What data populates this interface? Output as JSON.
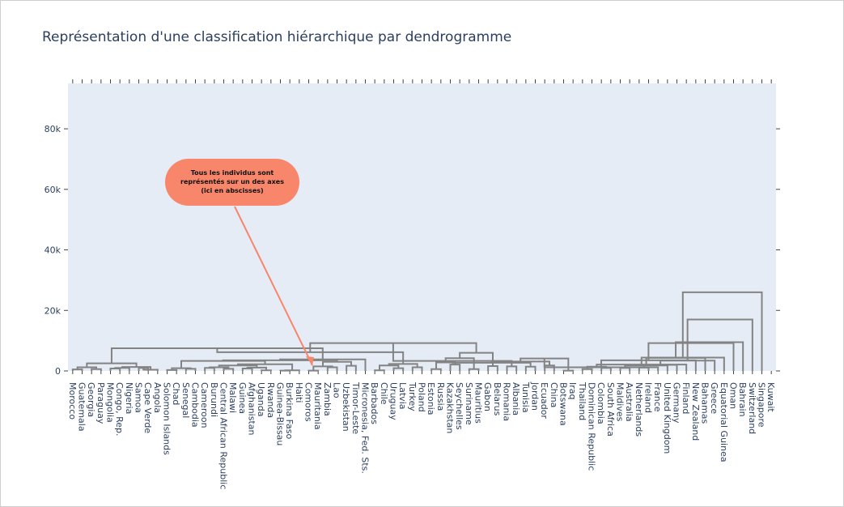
{
  "title": "Représentation d'une classification hiérarchique par dendrogramme",
  "annotation": {
    "lines": [
      "Tous les individus sont",
      "représentés sur un des axes",
      "(ici en abscisses)"
    ],
    "bubble_color": "#f8866a",
    "arrow_color": "#f8866a"
  },
  "colors": {
    "plot_bg": "#e5ecf6",
    "link": "#838383",
    "axis_text": "#2a3f5f"
  },
  "chart_data": {
    "type": "dendrogram",
    "title": "Représentation d'une classification hiérarchique par dendrogramme",
    "ylim": [
      0,
      95000
    ],
    "yticks": [
      {
        "v": 0,
        "label": "0"
      },
      {
        "v": 20000,
        "label": "20k"
      },
      {
        "v": 40000,
        "label": "40k"
      },
      {
        "v": 60000,
        "label": "60k"
      },
      {
        "v": 80000,
        "label": "80k"
      }
    ],
    "leaves": [
      "Morocco",
      "Guatemala",
      "Georgia",
      "Paraguay",
      "Mongolia",
      "Congo, Rep.",
      "Nigeria",
      "Samoa",
      "Cape Verde",
      "Angola",
      "Solomon Islands",
      "Chad",
      "Senegal",
      "Cambodia",
      "Cameroon",
      "Burundi",
      "Central African Republic",
      "Malawi",
      "Guinea",
      "Afghanistan",
      "Uganda",
      "Rwanda",
      "Guinea-Bissau",
      "Burkina Faso",
      "Haiti",
      "Comoros",
      "Mauritania",
      "Zambia",
      "Lao",
      "Uzbekistan",
      "Timor-Leste",
      "Micronesia, Fed. Sts.",
      "Barbados",
      "Chile",
      "Uruguay",
      "Latvia",
      "Turkey",
      "Poland",
      "Estonia",
      "Russia",
      "Kazakhstan",
      "Seychelles",
      "Suriname",
      "Mauritius",
      "Gabon",
      "Belarus",
      "Romania",
      "Albania",
      "Tunisia",
      "Jordan",
      "Ecuador",
      "China",
      "Botswana",
      "Iraq",
      "Thailand",
      "Dominican Republic",
      "Colombia",
      "South Africa",
      "Maldives",
      "Australia",
      "Netherlands",
      "Ireland",
      "France",
      "United Kingdom",
      "Germany",
      "Finland",
      "New Zealand",
      "Bahamas",
      "Greece",
      "Equatorial Guinea",
      "Oman",
      "Bahrain",
      "Switzerland",
      "Singapore",
      "Kuwait"
    ],
    "links": [
      [
        0,
        1,
        500
      ],
      [
        2,
        3,
        600
      ],
      [
        "L1",
        "L0",
        1200
      ],
      [
        4,
        5,
        800
      ],
      [
        "L3",
        6,
        1000
      ],
      [
        7,
        8,
        1000
      ],
      [
        "L5",
        9,
        400
      ],
      [
        "L4",
        "L6",
        1300
      ],
      [
        "L2",
        "L7",
        2500
      ],
      [
        10,
        11,
        300
      ],
      [
        12,
        13,
        700
      ],
      [
        "L9",
        "L10",
        900
      ],
      [
        14,
        15,
        1000
      ],
      [
        16,
        17,
        700
      ],
      [
        "L12",
        "L13",
        1200
      ],
      [
        18,
        19,
        800
      ],
      [
        20,
        21,
        200
      ],
      [
        "L15",
        "L16",
        1100
      ],
      [
        "L14",
        "L17",
        1800
      ],
      [
        22,
        23,
        100
      ],
      [
        "L19",
        24,
        200
      ],
      [
        "L18",
        "L20",
        2200
      ],
      [
        "L11",
        "L21",
        3300
      ],
      [
        25,
        26,
        100
      ],
      [
        27,
        28,
        1200
      ],
      [
        "L23",
        "L24",
        1500
      ],
      [
        29,
        30,
        1700
      ],
      [
        "L25",
        "L26",
        3000
      ],
      [
        "L22",
        "L27",
        3500
      ],
      [
        "L28",
        31,
        3800
      ],
      [
        "L8",
        "L29",
        7500
      ],
      [
        32,
        33,
        200
      ],
      [
        34,
        35,
        900
      ],
      [
        "L31",
        "L32",
        1800
      ],
      [
        36,
        37,
        1200
      ],
      [
        "L33",
        "L34",
        2300
      ],
      [
        "L30",
        "L35",
        6200
      ],
      [
        38,
        39,
        600
      ],
      [
        40,
        41,
        2100
      ],
      [
        "L37",
        "L38",
        2800
      ],
      [
        42,
        43,
        600
      ],
      [
        "L39",
        "L40",
        4200
      ],
      [
        44,
        45,
        1600
      ],
      [
        "L41",
        "L42",
        6000
      ],
      [
        "L36",
        "L43",
        9200
      ],
      [
        46,
        47,
        1500
      ],
      [
        "L44",
        "L45",
        3300
      ],
      [
        48,
        49,
        1400
      ],
      [
        50,
        51,
        1800
      ],
      [
        "L46",
        "L47",
        2700
      ],
      [
        52,
        53,
        100
      ],
      [
        "L48",
        "L49",
        3100
      ],
      [
        54,
        55,
        600
      ],
      [
        56,
        57,
        1000
      ],
      [
        "L50",
        "L51",
        4100
      ],
      [
        58,
        59,
        1000
      ],
      [
        60,
        61,
        1100
      ],
      [
        "L52",
        "L53",
        1400
      ],
      [
        "L54",
        62,
        1200
      ],
      [
        "L55",
        63,
        1800
      ],
      [
        "L56",
        64,
        2000
      ],
      [
        "L57",
        65,
        2100
      ],
      [
        "L58",
        66,
        3500
      ],
      [
        "L59",
        67,
        4300
      ],
      [
        "L60",
        68,
        3400
      ],
      [
        "L61",
        69,
        4400
      ],
      [
        "L62",
        70,
        9200
      ],
      [
        "L63",
        71,
        9500
      ],
      [
        "L64",
        72,
        17000
      ],
      [
        "L65",
        73,
        26000
      ],
      [
        0,
        0,
        0
      ]
    ]
  }
}
